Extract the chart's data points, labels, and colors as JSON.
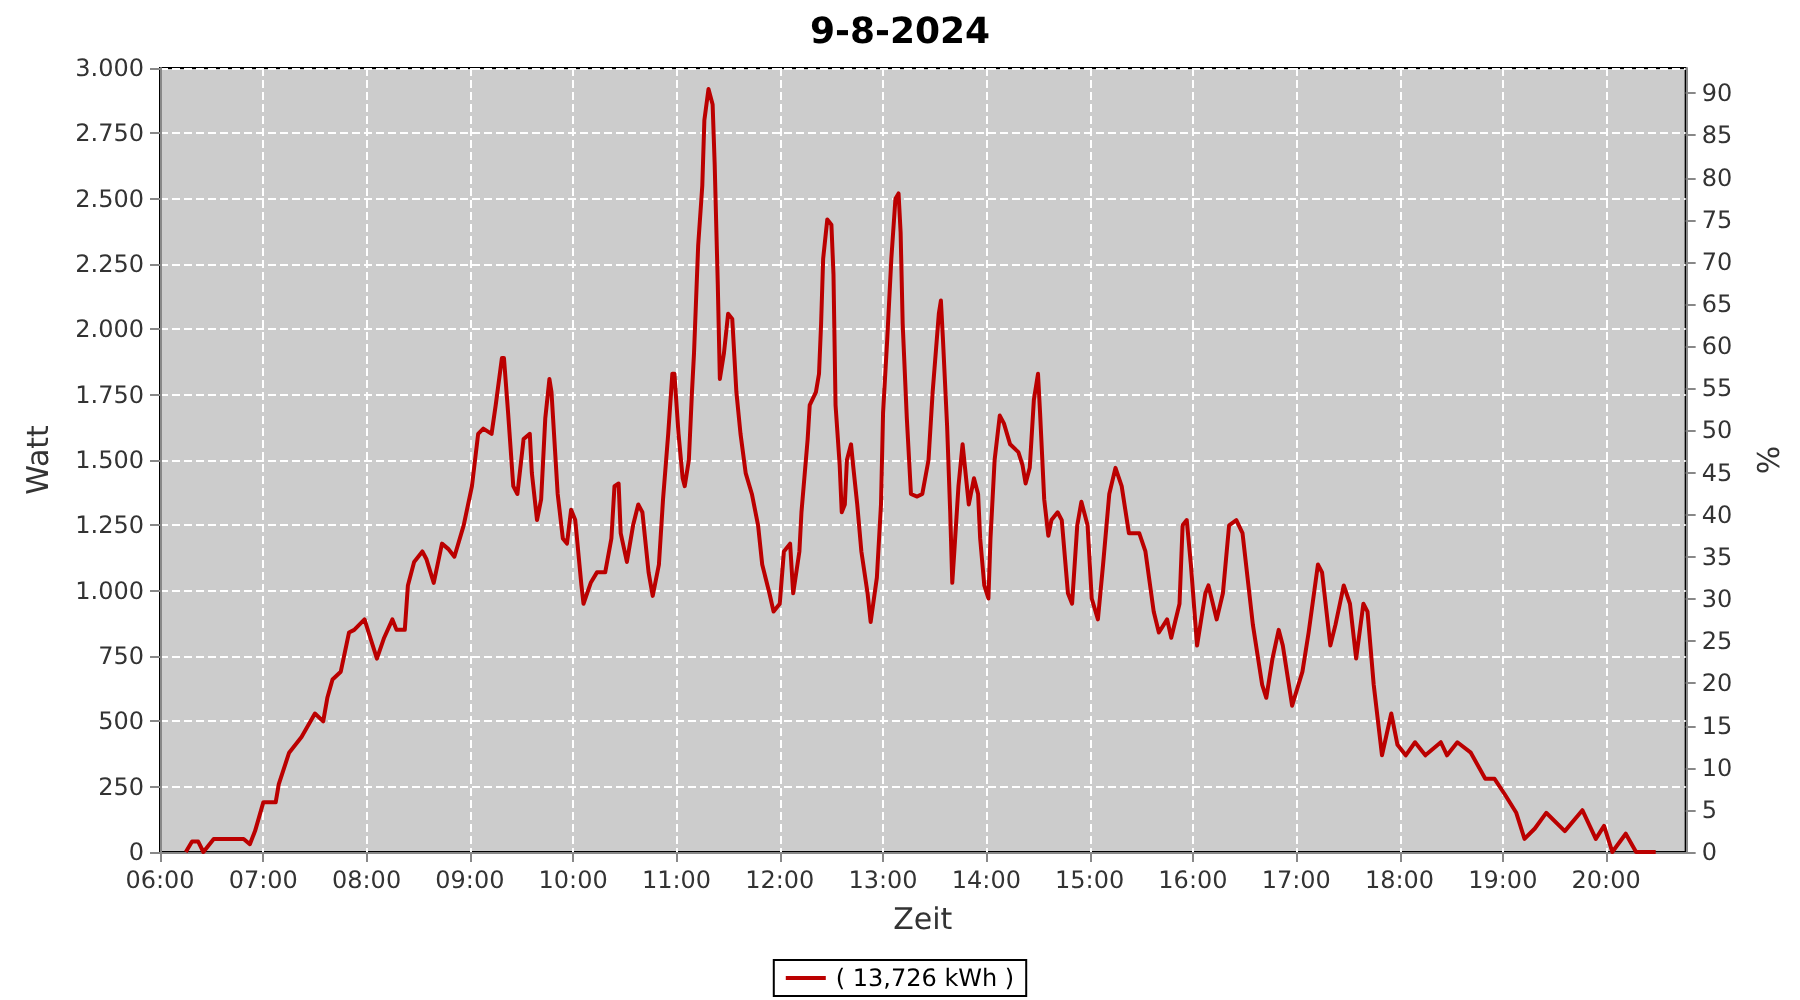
{
  "chart_data": {
    "type": "line",
    "title": "9-8-2024",
    "xlabel": "Zeit",
    "ylabel": "Watt",
    "y2label": "%",
    "xlim": [
      6,
      20.77
    ],
    "xticks": [
      {
        "value": 6,
        "label": "06:00"
      },
      {
        "value": 7,
        "label": "07:00"
      },
      {
        "value": 8,
        "label": "08:00"
      },
      {
        "value": 9,
        "label": "09:00"
      },
      {
        "value": 10,
        "label": "10:00"
      },
      {
        "value": 11,
        "label": "11:00"
      },
      {
        "value": 12,
        "label": "12:00"
      },
      {
        "value": 13,
        "label": "13:00"
      },
      {
        "value": 14,
        "label": "14:00"
      },
      {
        "value": 15,
        "label": "15:00"
      },
      {
        "value": 16,
        "label": "16:00"
      },
      {
        "value": 17,
        "label": "17:00"
      },
      {
        "value": 18,
        "label": "18:00"
      },
      {
        "value": 19,
        "label": "19:00"
      },
      {
        "value": 20,
        "label": "20:00"
      }
    ],
    "ylim": [
      0,
      3000
    ],
    "yticks": [
      0,
      250,
      500,
      750,
      {
        "value": 1000,
        "label": "1.000"
      },
      {
        "value": 1250,
        "label": "1.250"
      },
      {
        "value": 1500,
        "label": "1.500"
      },
      {
        "value": 1750,
        "label": "1.750"
      },
      {
        "value": 2000,
        "label": "2.000"
      },
      {
        "value": 2250,
        "label": "2.250"
      },
      {
        "value": 2500,
        "label": "2.500"
      },
      {
        "value": 2750,
        "label": "2.750"
      },
      {
        "value": 3000,
        "label": "3.000"
      }
    ],
    "y2lim": [
      0,
      93
    ],
    "y2ticks": [
      0,
      5,
      10,
      15,
      20,
      25,
      30,
      35,
      40,
      45,
      50,
      55,
      60,
      65,
      70,
      75,
      80,
      85,
      90
    ],
    "grid": true,
    "legend": "bottom",
    "marker": "none",
    "line_style": "solid",
    "series": [
      {
        "name": "( 13,726 kWh )",
        "color": "#bb0000",
        "x": [
          6.25,
          6.31,
          6.37,
          6.42,
          6.52,
          6.81,
          6.87,
          6.92,
          7.0,
          7.12,
          7.15,
          7.25,
          7.37,
          7.5,
          7.58,
          7.62,
          7.67,
          7.75,
          7.83,
          7.88,
          7.98,
          8.02,
          8.1,
          8.17,
          8.25,
          8.29,
          8.37,
          8.4,
          8.46,
          8.54,
          8.58,
          8.65,
          8.73,
          8.79,
          8.85,
          8.94,
          9.02,
          9.08,
          9.13,
          9.21,
          9.25,
          9.31,
          9.33,
          9.37,
          9.42,
          9.46,
          9.52,
          9.58,
          9.6,
          9.65,
          9.69,
          9.73,
          9.77,
          9.79,
          9.85,
          9.9,
          9.94,
          9.98,
          10.02,
          10.08,
          10.1,
          10.17,
          10.23,
          10.31,
          10.37,
          10.4,
          10.44,
          10.46,
          10.52,
          10.58,
          10.63,
          10.67,
          10.73,
          10.77,
          10.83,
          10.87,
          10.92,
          10.96,
          10.98,
          11.02,
          11.06,
          11.08,
          11.12,
          11.15,
          11.17,
          11.21,
          11.25,
          11.27,
          11.31,
          11.35,
          11.37,
          11.4,
          11.42,
          11.46,
          11.5,
          11.54,
          11.58,
          11.62,
          11.67,
          11.73,
          11.79,
          11.83,
          11.9,
          11.94,
          12.0,
          12.04,
          12.1,
          12.13,
          12.19,
          12.21,
          12.27,
          12.29,
          12.35,
          12.38,
          12.4,
          12.42,
          12.46,
          12.5,
          12.52,
          12.54,
          12.58,
          12.6,
          12.63,
          12.65,
          12.69,
          12.71,
          12.75,
          12.79,
          12.85,
          12.88,
          12.94,
          12.98,
          13.0,
          13.04,
          13.08,
          13.12,
          13.15,
          13.17,
          13.19,
          13.23,
          13.27,
          13.33,
          13.38,
          13.44,
          13.48,
          13.54,
          13.56,
          13.58,
          13.62,
          13.65,
          13.67,
          13.69,
          13.73,
          13.77,
          13.83,
          13.88,
          13.92,
          13.94,
          13.98,
          14.02,
          14.04,
          14.08,
          14.13,
          14.17,
          14.23,
          14.31,
          14.35,
          14.38,
          14.42,
          14.46,
          14.5,
          14.52,
          14.56,
          14.6,
          14.63,
          14.69,
          14.73,
          14.79,
          14.83,
          14.88,
          14.92,
          14.98,
          15.02,
          15.08,
          15.13,
          15.19,
          15.25,
          15.31,
          15.38,
          15.48,
          15.54,
          15.62,
          15.67,
          15.75,
          15.79,
          15.87,
          15.9,
          15.94,
          15.98,
          16.04,
          16.12,
          16.15,
          16.23,
          16.29,
          16.35,
          16.42,
          16.48,
          16.58,
          16.67,
          16.71,
          16.77,
          16.83,
          16.87,
          16.96,
          17.06,
          17.12,
          17.21,
          17.25,
          17.33,
          17.38,
          17.46,
          17.52,
          17.58,
          17.65,
          17.69,
          17.75,
          17.83,
          17.92,
          17.98,
          18.06,
          18.15,
          18.25,
          18.4,
          18.46,
          18.56,
          18.69,
          18.83,
          18.92,
          19.02,
          19.13,
          19.21,
          19.31,
          19.42,
          19.6,
          19.77,
          19.9,
          19.98,
          20.06,
          20.19,
          20.29,
          20.48
        ],
        "values": [
          0,
          40,
          40,
          0,
          50,
          50,
          30,
          80,
          190,
          190,
          260,
          380,
          440,
          530,
          500,
          590,
          660,
          690,
          840,
          850,
          890,
          840,
          740,
          820,
          890,
          850,
          850,
          1020,
          1110,
          1150,
          1120,
          1030,
          1180,
          1160,
          1130,
          1250,
          1400,
          1600,
          1620,
          1600,
          1710,
          1890,
          1890,
          1680,
          1400,
          1370,
          1580,
          1600,
          1450,
          1270,
          1350,
          1660,
          1810,
          1760,
          1370,
          1200,
          1180,
          1310,
          1270,
          1020,
          950,
          1030,
          1070,
          1070,
          1200,
          1400,
          1410,
          1220,
          1110,
          1250,
          1330,
          1300,
          1070,
          980,
          1100,
          1350,
          1600,
          1830,
          1830,
          1600,
          1430,
          1400,
          1500,
          1760,
          1910,
          2320,
          2550,
          2800,
          2920,
          2860,
          2630,
          2170,
          1810,
          1910,
          2060,
          2040,
          1760,
          1600,
          1450,
          1370,
          1250,
          1100,
          990,
          920,
          950,
          1150,
          1180,
          990,
          1150,
          1300,
          1580,
          1710,
          1760,
          1830,
          2020,
          2270,
          2420,
          2400,
          2210,
          1710,
          1480,
          1300,
          1330,
          1500,
          1560,
          1480,
          1330,
          1150,
          990,
          880,
          1050,
          1330,
          1680,
          1960,
          2270,
          2500,
          2520,
          2370,
          2020,
          1660,
          1370,
          1360,
          1370,
          1500,
          1760,
          2060,
          2110,
          1960,
          1630,
          1300,
          1030,
          1150,
          1400,
          1560,
          1330,
          1430,
          1370,
          1200,
          1020,
          970,
          1200,
          1500,
          1670,
          1640,
          1560,
          1530,
          1480,
          1410,
          1470,
          1730,
          1830,
          1680,
          1350,
          1210,
          1270,
          1300,
          1270,
          990,
          950,
          1250,
          1340,
          1250,
          970,
          890,
          1100,
          1370,
          1470,
          1400,
          1220,
          1220,
          1150,
          920,
          840,
          890,
          820,
          950,
          1250,
          1270,
          1100,
          790,
          990,
          1020,
          890,
          990,
          1250,
          1270,
          1220,
          870,
          640,
          590,
          740,
          850,
          790,
          560,
          690,
          840,
          1100,
          1070,
          790,
          870,
          1020,
          950,
          740,
          950,
          920,
          640,
          370,
          530,
          410,
          370,
          420,
          370,
          420,
          370,
          420,
          380,
          280,
          280,
          220,
          150,
          50,
          90,
          150,
          80,
          160,
          50,
          100,
          0,
          70,
          0,
          0
        ]
      }
    ]
  }
}
